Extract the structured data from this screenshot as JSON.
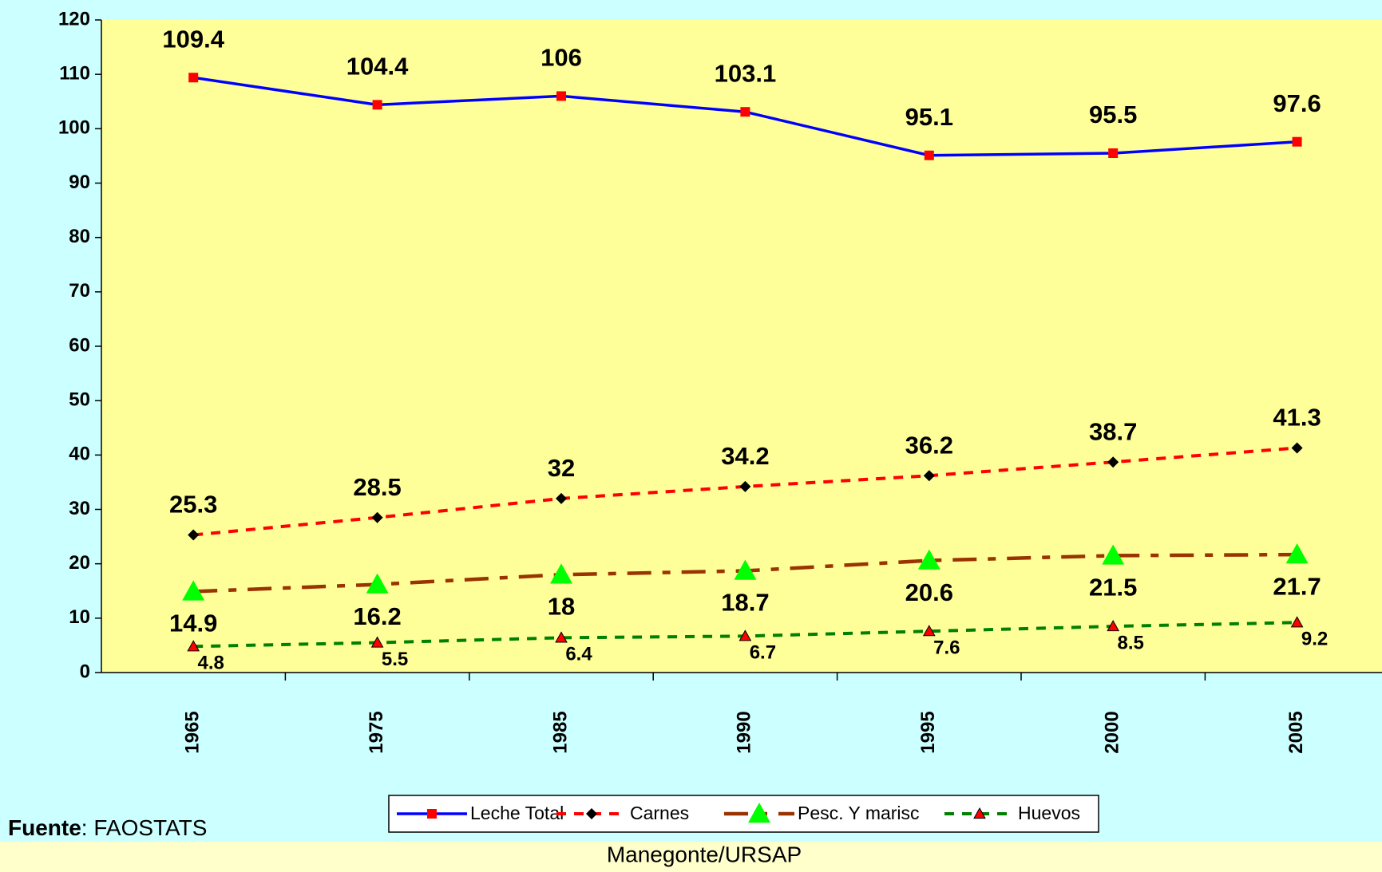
{
  "chart_data": {
    "type": "line",
    "categories": [
      "1965",
      "1975",
      "1985",
      "1990",
      "1995",
      "2000",
      "2005"
    ],
    "series": [
      {
        "name": "Leche Total",
        "color": "#0000ff",
        "marker_color": "#ff0000",
        "marker": "square",
        "dash": "solid",
        "values": [
          109.4,
          104.4,
          106,
          103.1,
          95.1,
          95.5,
          97.6
        ]
      },
      {
        "name": "Carnes",
        "color": "#ff0000",
        "marker_color": "#000000",
        "marker": "diamond",
        "dash": "dashed",
        "values": [
          25.3,
          28.5,
          32,
          34.2,
          36.2,
          38.7,
          41.3
        ]
      },
      {
        "name": "Pesc. Y marisc",
        "color": "#993300",
        "marker_color": "#00ff00",
        "marker": "triangle",
        "dash": "dash-dot",
        "values": [
          14.9,
          16.2,
          18,
          18.7,
          20.6,
          21.5,
          21.7
        ]
      },
      {
        "name": "Huevos",
        "color": "#008000",
        "marker_color": "#ff0000",
        "marker": "small-triangle",
        "dash": "dashed",
        "values": [
          4.8,
          5.5,
          6.4,
          6.7,
          7.6,
          8.5,
          9.2
        ]
      }
    ],
    "ylim": [
      0,
      120
    ],
    "yticks": [
      0,
      10,
      20,
      30,
      40,
      50,
      60,
      70,
      80,
      90,
      100,
      110,
      120
    ],
    "legend": "bottom",
    "source_label": "Fuente",
    "source_text": ": FAOSTATS",
    "credit": "Manegonte/URSAP"
  }
}
